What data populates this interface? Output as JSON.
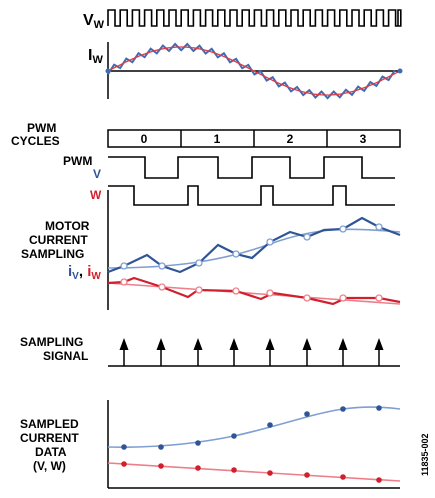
{
  "labels": {
    "vw_main": "V",
    "vw_sub": "W",
    "iw_main": "I",
    "iw_sub": "W",
    "pwm_cycles_1": "PWM",
    "pwm_cycles_2": "CYCLES",
    "pwm": "PWM",
    "v": "V",
    "w": "W",
    "motor_current_1": "MOTOR",
    "motor_current_2": "CURRENT",
    "motor_current_3": "SAMPLING",
    "iv_main": "i",
    "iv_sub": "V",
    "comma": ", ",
    "iw2_main": "i",
    "iw2_sub": "W",
    "sampling_signal_1": "SAMPLING",
    "sampling_signal_2": "SIGNAL",
    "sampled_1": "SAMPLED",
    "sampled_2": "CURRENT",
    "sampled_3": "DATA",
    "sampled_4": "(V, W)",
    "figure_id": "11835-002"
  },
  "cycles": [
    "0",
    "1",
    "2",
    "3"
  ],
  "colors": {
    "line": "#000000",
    "v_dark": "#2f5597",
    "v_light": "#7f9fd0",
    "w_dark": "#d0202e",
    "w_light": "#ee7f8a",
    "sine_red": "#e03a48",
    "sine_blue": "#3f6cb0",
    "v_text": "#2f5597",
    "w_text": "#d0202e"
  }
}
